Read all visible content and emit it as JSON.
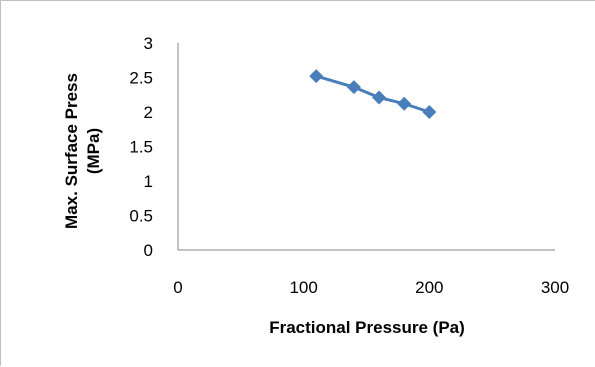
{
  "chart_data": {
    "type": "line",
    "title": "",
    "xlabel": "Fractional  Pressure (Pa)",
    "ylabel_lines": [
      "Max. Surface Press",
      "(MPa)"
    ],
    "xlim": [
      0,
      300
    ],
    "ylim": [
      0,
      3
    ],
    "xticks": [
      "0",
      "100",
      "200",
      "300"
    ],
    "yticks": [
      "0",
      "0.5",
      "1",
      "1.5",
      "2",
      "2.5",
      "3"
    ],
    "grid": false,
    "legend": "none",
    "marker": "diamond",
    "series": [
      {
        "color": "#4a7ebb",
        "x": [
          110,
          140,
          160,
          180,
          200
        ],
        "y": [
          2.52,
          2.36,
          2.21,
          2.12,
          2.0
        ]
      }
    ]
  }
}
